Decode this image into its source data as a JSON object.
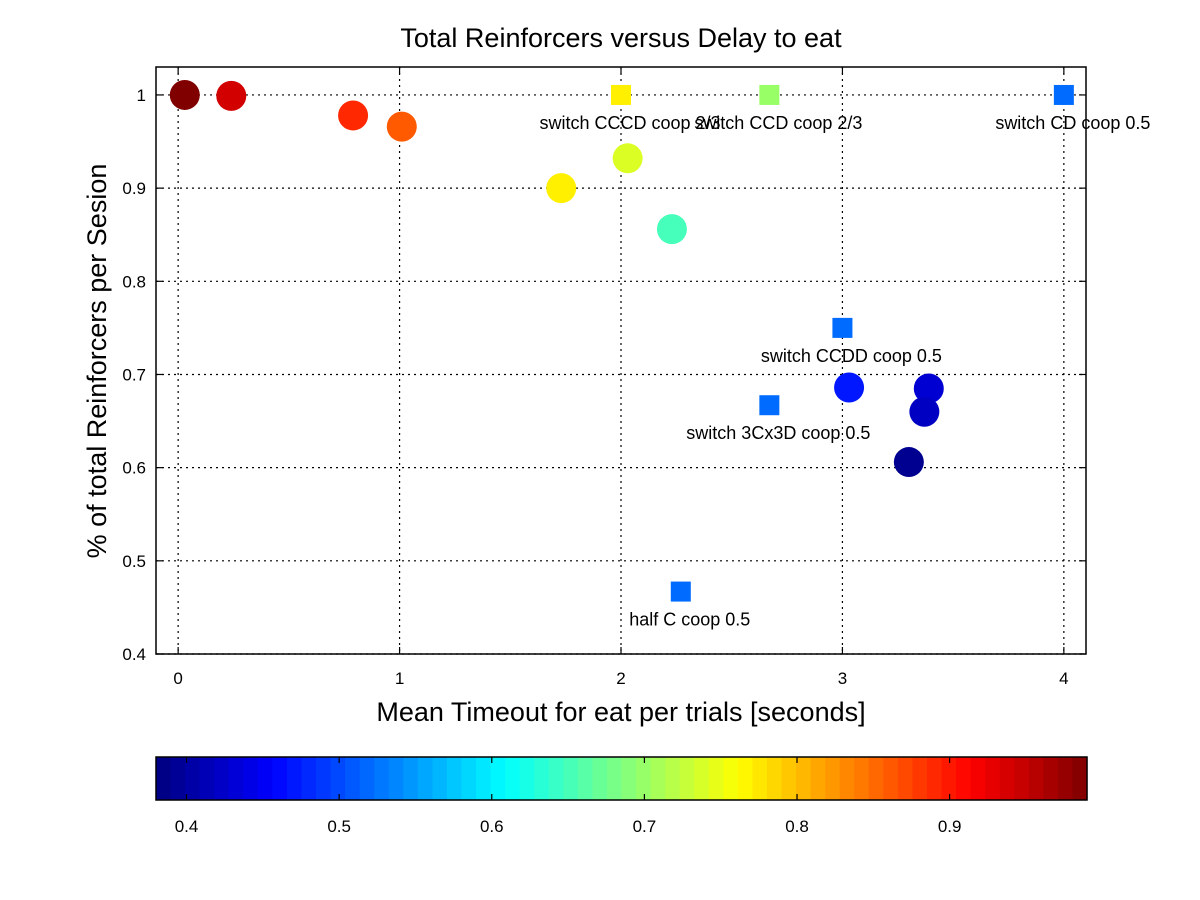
{
  "chart_data": {
    "type": "scatter",
    "title": "Total Reinforcers versus Delay to eat",
    "xlabel": "Mean Timeout for eat per trials [seconds]",
    "ylabel": "% of total Reinforcers per Sesion",
    "xlim": [
      -0.1,
      4.1
    ],
    "ylim": [
      0.4,
      1.03
    ],
    "xticks": [
      "0",
      "1",
      "2",
      "3",
      "4"
    ],
    "yticks": [
      "0.4",
      "0.5",
      "0.6",
      "0.7",
      "0.8",
      "0.9",
      "1"
    ],
    "grid": true,
    "colorbar": {
      "placement": "bottom",
      "range": [
        0.38,
        0.99
      ],
      "ticks": [
        "0.4",
        "0.5",
        "0.6",
        "0.7",
        "0.8",
        "0.9"
      ]
    },
    "circles": [
      {
        "x": 0.03,
        "y": 1.0,
        "c": 0.99
      },
      {
        "x": 0.24,
        "y": 0.999,
        "c": 0.94
      },
      {
        "x": 0.79,
        "y": 0.978,
        "c": 0.89
      },
      {
        "x": 1.01,
        "y": 0.966,
        "c": 0.86
      },
      {
        "x": 1.73,
        "y": 0.9,
        "c": 0.77
      },
      {
        "x": 2.03,
        "y": 0.932,
        "c": 0.74
      },
      {
        "x": 2.23,
        "y": 0.856,
        "c": 0.65
      },
      {
        "x": 3.03,
        "y": 0.686,
        "c": 0.47
      },
      {
        "x": 3.39,
        "y": 0.685,
        "c": 0.43
      },
      {
        "x": 3.37,
        "y": 0.66,
        "c": 0.42
      },
      {
        "x": 3.3,
        "y": 0.606,
        "c": 0.39
      }
    ],
    "squares": [
      {
        "x": 2.0,
        "y": 1.0,
        "c": 0.77,
        "label": "switch CCCD  coop 2/3"
      },
      {
        "x": 2.67,
        "y": 1.0,
        "c": 0.7,
        "label": "switch CCD  coop 2/3"
      },
      {
        "x": 4.0,
        "y": 1.0,
        "c": 0.52,
        "label": "switch CD coop 0.5"
      },
      {
        "x": 3.0,
        "y": 0.75,
        "c": 0.52,
        "label": "switch CCDD coop 0.5"
      },
      {
        "x": 2.67,
        "y": 0.667,
        "c": 0.52,
        "label": "switch 3Cx3D coop 0.5"
      },
      {
        "x": 2.27,
        "y": 0.467,
        "c": 0.52,
        "label": "half C coop 0.5"
      }
    ]
  }
}
